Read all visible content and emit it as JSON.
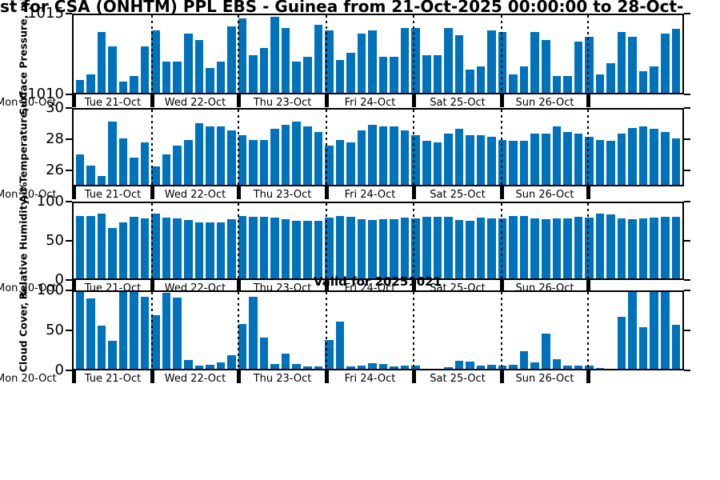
{
  "title": {
    "visible_text": "st for CSA (ONHTM) PPL EBS  - Guinea from 21-Oct-2025 00:00:00 to 28-Oct-"
  },
  "valid_for": "Valid for 20251021",
  "colors": {
    "bar": "#0072BC",
    "axis": "#000000",
    "background": "#FFFFFF"
  },
  "x_axis": {
    "leading_label": "Mon 20-Oct",
    "day_labels": [
      "Tue 21-Oct",
      "Wed 22-Oct",
      "Thu 23-Oct",
      "Fri 24-Oct",
      "Sat 25-Oct",
      "Sun 26-Oct"
    ],
    "bars_per_day": 8,
    "interval_hours": 3,
    "days_shown": 7
  },
  "chart_data": [
    {
      "id": "surface-pressure",
      "type": "bar",
      "ylabel": "Surface Pressure, mb",
      "ylim": [
        1010,
        1015
      ],
      "yticks": [
        1010,
        1015
      ],
      "values": [
        1010.8,
        1011.2,
        1013.9,
        1013.0,
        1010.7,
        1011.1,
        1013.0,
        1014.0,
        1012.0,
        1012.0,
        1013.8,
        1013.4,
        1011.6,
        1012.0,
        1014.3,
        1014.8,
        1012.4,
        1012.9,
        1014.9,
        1014.2,
        1012.0,
        1012.3,
        1014.4,
        1014.0,
        1012.1,
        1012.6,
        1013.8,
        1014.0,
        1012.3,
        1012.3,
        1014.2,
        1014.2,
        1012.4,
        1012.4,
        1014.2,
        1013.7,
        1011.5,
        1011.7,
        1014.0,
        1013.9,
        1011.2,
        1011.7,
        1013.9,
        1013.4,
        1011.1,
        1011.1,
        1013.3,
        1013.6,
        1011.2,
        1011.9,
        1013.9,
        1013.6,
        1011.4,
        1011.7,
        1013.8,
        1014.1
      ]
    },
    {
      "id": "air-temperature",
      "type": "bar",
      "ylabel": "Air Temperature, °C",
      "ylim": [
        25,
        30
      ],
      "yticks": [
        26,
        28,
        30
      ],
      "values": [
        27.0,
        26.3,
        25.6,
        29.2,
        28.1,
        26.8,
        27.8,
        26.2,
        27.0,
        27.6,
        28.0,
        29.1,
        28.9,
        28.9,
        28.6,
        28.3,
        28.0,
        28.0,
        28.7,
        29.0,
        29.2,
        28.9,
        28.5,
        27.6,
        28.0,
        27.8,
        28.6,
        29.0,
        28.9,
        28.9,
        28.6,
        28.3,
        27.9,
        27.8,
        28.4,
        28.7,
        28.3,
        28.3,
        28.2,
        28.0,
        27.9,
        27.9,
        28.4,
        28.4,
        28.9,
        28.5,
        28.4,
        28.2,
        28.0,
        27.9,
        28.4,
        28.8,
        28.9,
        28.7,
        28.5,
        28.1
      ]
    },
    {
      "id": "relative-humidity",
      "type": "bar",
      "ylabel": "Relative Humidity, %",
      "ylim": [
        0,
        100
      ],
      "yticks": [
        0,
        50,
        100
      ],
      "values": [
        83,
        83,
        86,
        67,
        75,
        82,
        80,
        86,
        81,
        80,
        78,
        75,
        74,
        75,
        79,
        83,
        82,
        82,
        81,
        79,
        77,
        77,
        77,
        81,
        83,
        82,
        79,
        78,
        79,
        79,
        81,
        80,
        82,
        82,
        82,
        78,
        77,
        81,
        80,
        80,
        83,
        83,
        80,
        79,
        80,
        80,
        82,
        81,
        86,
        85,
        80,
        79,
        80,
        81,
        82,
        82
      ]
    },
    {
      "id": "cloud-cover",
      "type": "bar",
      "ylabel": "Cloud Cover, %",
      "ylim": [
        0,
        100
      ],
      "yticks": [
        0,
        50,
        100
      ],
      "values": [
        100,
        92,
        56,
        36,
        100,
        100,
        94,
        70,
        99,
        93,
        11,
        4,
        5,
        8,
        18,
        58,
        94,
        41,
        6,
        20,
        6,
        3,
        3,
        37,
        61,
        3,
        4,
        7,
        6,
        3,
        4,
        4,
        0,
        0,
        2,
        10,
        9,
        4,
        5,
        4,
        5,
        23,
        8,
        46,
        13,
        4,
        4,
        4,
        1,
        0,
        68,
        100,
        54,
        100,
        100,
        57
      ]
    }
  ]
}
